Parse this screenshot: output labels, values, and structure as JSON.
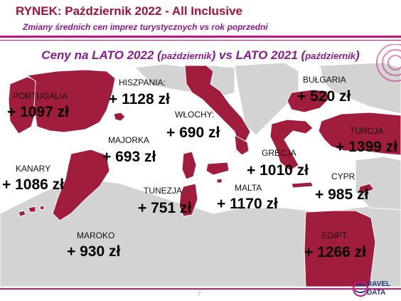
{
  "header": {
    "title": "RYNEK: Październik 2022 - All Inclusive",
    "subtitle": "Zmiany średnich cen imprez turystycznych vs rok poprzedni"
  },
  "map": {
    "title_part1": "Ceny na LATO 2022 (",
    "title_part2": "październik",
    "title_part3": ") vs  LATO 2021 (",
    "title_part4": "październik",
    "title_part5": ")"
  },
  "regions": {
    "portugalia": {
      "name": "PORTUGALIA",
      "value": "+ 1097 zł"
    },
    "hiszpania": {
      "name": "HISZPANIA:",
      "value": "+ 1128 zł"
    },
    "wlochy": {
      "name": "WŁOCHY:",
      "value": "+ 690 zł"
    },
    "bulgaria": {
      "name": "BUŁGARIA",
      "value": "+ 520 zł"
    },
    "majorka": {
      "name": "MAJORKA",
      "value": "+ 693 zł"
    },
    "turcja": {
      "name": "TURCJA",
      "value": "+ 1399 zł"
    },
    "kanary": {
      "name": "KANARY",
      "value": "+ 1086 zł"
    },
    "grecja": {
      "name": "GRECJA",
      "value": "+ 1010 zł"
    },
    "cypr": {
      "name": "CYPR",
      "value": "+ 985 zł"
    },
    "tunezja": {
      "name": "TUNEZJA",
      "value": "+ 751 zł"
    },
    "malta": {
      "name": "MALTA",
      "value": "+ 1170 zł"
    },
    "maroko": {
      "name": "MAROKO",
      "value": "+ 930 zł"
    },
    "egipt": {
      "name": "EGIPT",
      "value": "+ 1266 zł"
    }
  },
  "footer": {
    "page_number": "7",
    "logo_line1": "RAVEL",
    "logo_line2": "DATA"
  },
  "colors": {
    "accent": "#a2123a",
    "subtitle": "#8a1a8e",
    "rule": "#c6137a",
    "country_fill": "#a11d3d",
    "land_fill": "#d3d3d3",
    "sea_fill": "#ffffff"
  }
}
